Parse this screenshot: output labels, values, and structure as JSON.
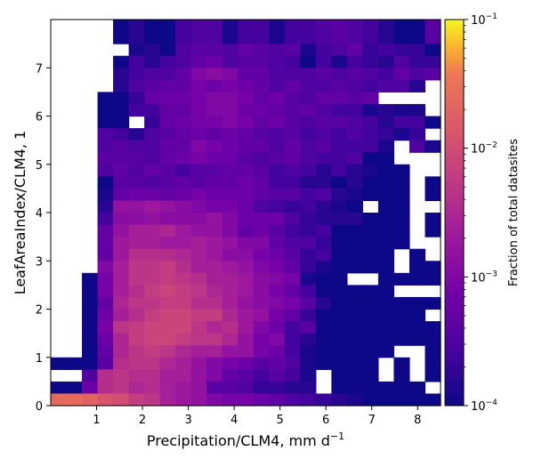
{
  "chart_data": {
    "type": "heatmap",
    "xlabel": "Precipitation/CLM4,  mm d",
    "xlabel_sup": "−1",
    "ylabel": "LeafAreaIndex/CLM4,  1",
    "xlim": [
      0,
      8.5
    ],
    "ylim": [
      0,
      8
    ],
    "xticks": [
      1,
      2,
      3,
      4,
      5,
      6,
      7,
      8
    ],
    "yticks": [
      0,
      1,
      2,
      3,
      4,
      5,
      6,
      7
    ],
    "xtick_labels": [
      "1",
      "2",
      "3",
      "4",
      "5",
      "6",
      "7",
      "8"
    ],
    "ytick_labels": [
      "0",
      "1",
      "2",
      "3",
      "4",
      "5",
      "6",
      "7"
    ],
    "x_bin_width": 0.3333,
    "y_bin_width": 0.3333,
    "colorbar": {
      "label": "Fraction of total datasites",
      "scale": "log",
      "vmin": 0.0001,
      "vmax": 0.1,
      "tick_values": [
        0.0001,
        0.001,
        0.01,
        0.1
      ],
      "tick_labels": [
        {
          "base": "10",
          "exp": "−4"
        },
        {
          "base": "10",
          "exp": "−3"
        },
        {
          "base": "10",
          "exp": "−2"
        },
        {
          "base": "10",
          "exp": "−1"
        }
      ]
    },
    "grid": false,
    "log10_fraction_rows_top_to_bottom": [
      [
        null,
        null,
        null,
        null,
        -4,
        -3.8,
        -4,
        -4,
        -3.6,
        -3.5,
        -3.5,
        -3.9,
        -3.6,
        -3.6,
        -3.9,
        -3.6,
        -3.6,
        -3.5,
        -3.4,
        -3.5,
        -3.6,
        -3.8,
        -4,
        -4,
        -3.4
      ],
      [
        null,
        null,
        null,
        null,
        -4,
        -3.8,
        -4,
        -4,
        -3.6,
        -3.5,
        -3.5,
        -3.9,
        -3.6,
        -3.6,
        -3.9,
        -3.6,
        -3.6,
        -3.5,
        -3.4,
        -3.5,
        -3.6,
        -3.8,
        -4,
        -4,
        -3.4
      ],
      [
        null,
        null,
        null,
        null,
        null,
        -3.9,
        -3.8,
        -4,
        -3.5,
        -3.4,
        -3.4,
        -3.5,
        -3.3,
        -3.4,
        -3.5,
        -3.4,
        -3.9,
        -3.6,
        -3.5,
        -3.3,
        -3.7,
        -3.6,
        -3.7,
        -3.7,
        -4
      ],
      [
        null,
        null,
        null,
        null,
        -4,
        -3.6,
        -3.8,
        -3.6,
        -3.5,
        -3.3,
        -3.2,
        -3.5,
        -3.4,
        -3.4,
        -3.5,
        -3.6,
        -4,
        -3.6,
        -3.9,
        -3.6,
        -3.7,
        -3.8,
        -3.5,
        -3.7,
        -3.7
      ],
      [
        null,
        null,
        null,
        null,
        -3.8,
        -3.6,
        -3.5,
        -3.5,
        -3.3,
        -3,
        -2.9,
        -3,
        -3.3,
        -3.3,
        -3.5,
        -3.5,
        -3.5,
        -3.4,
        -3.5,
        -3.4,
        -3.5,
        -3.6,
        -3.3,
        -3.5,
        -3.4
      ],
      [
        null,
        null,
        null,
        null,
        -3.8,
        -3.5,
        -3.4,
        -3.3,
        -3.3,
        -3.1,
        -3.2,
        -3.1,
        -3.2,
        -3.3,
        -3.5,
        -3.3,
        -3.5,
        -3.5,
        -3.4,
        -3.5,
        -3.6,
        -3.5,
        -3.5,
        -3.8,
        null
      ],
      [
        null,
        null,
        null,
        -4,
        -4,
        -3.7,
        -3.3,
        -3.2,
        -3.2,
        -3.1,
        -3,
        -3,
        -3.1,
        -3.3,
        -3.2,
        -3.4,
        -3.5,
        -3.3,
        -3.3,
        -3.4,
        -3.3,
        null,
        null,
        null,
        null
      ],
      [
        null,
        null,
        null,
        -4,
        -4,
        -3.6,
        -3.6,
        -3.3,
        -3.3,
        -3.1,
        -3,
        -3,
        -3.2,
        -3.2,
        -3.3,
        -3.4,
        -3.3,
        -3.5,
        -3.6,
        -3.6,
        -3.9,
        -3.8,
        -3.9,
        -3.9,
        null
      ],
      [
        null,
        null,
        null,
        -4,
        -4,
        null,
        -3.7,
        -3.3,
        -3.2,
        -3.1,
        -3.1,
        -3,
        -3.1,
        -3.3,
        -3.2,
        -3.4,
        -3.5,
        -3.4,
        -3.4,
        -3.5,
        -3.6,
        -3.8,
        -3.6,
        -3.6,
        -4
      ],
      [
        null,
        null,
        null,
        -3.5,
        -3.6,
        -3.8,
        -3.5,
        -3.4,
        -3.3,
        -3.2,
        -3.3,
        -3.2,
        -3.3,
        -3.4,
        -3.5,
        -3.4,
        -3.6,
        -3.5,
        -3.6,
        -3.5,
        -3.6,
        -3.7,
        -3.9,
        -3.7,
        null
      ],
      [
        null,
        null,
        null,
        -3.5,
        -3.4,
        -3.5,
        -3.5,
        -3.3,
        -3.3,
        -3,
        -3.1,
        -3.2,
        -3.3,
        -3.3,
        -3.5,
        -3.3,
        -3.5,
        -3.4,
        -3.6,
        -3.6,
        -3.6,
        -3.9,
        null,
        -3.5,
        -3.9
      ],
      [
        null,
        null,
        null,
        -3.4,
        -3.4,
        -3.4,
        -3.5,
        -3.3,
        -3.2,
        -3.1,
        -3.2,
        -3.2,
        -3.4,
        -3.5,
        -3.4,
        -3.3,
        -3.5,
        -3.6,
        -3.6,
        -3.5,
        -4,
        -4,
        null,
        null,
        null
      ],
      [
        null,
        null,
        null,
        -3.5,
        -3.3,
        -3.5,
        -3.3,
        -3.4,
        -3.6,
        -3.4,
        -3.4,
        -3.3,
        -3.3,
        -3.4,
        -3.6,
        -3.5,
        -3.6,
        -3.8,
        -3.6,
        -3.8,
        -3.9,
        -4,
        -4,
        null,
        null
      ],
      [
        null,
        null,
        null,
        -4,
        -3.4,
        -3.4,
        -3.5,
        -3.4,
        -3.3,
        -3.4,
        -3.3,
        -3.3,
        -3.2,
        -3.3,
        -3.6,
        -3.6,
        -3.8,
        -3.8,
        -4,
        -3.8,
        -4,
        -4,
        -4,
        null,
        -4
      ],
      [
        null,
        null,
        null,
        -3.9,
        -3.3,
        -3.2,
        -3.2,
        -3.3,
        -3.2,
        -3.1,
        -3.2,
        -3.2,
        -3.2,
        -3.3,
        -3.4,
        -3.4,
        -3.6,
        -3.5,
        -3.8,
        -3.9,
        -4,
        -4,
        -4,
        null,
        -4
      ],
      [
        null,
        null,
        null,
        -3.8,
        -2.8,
        -2.8,
        -2.7,
        -2.8,
        -2.9,
        -3,
        -3.1,
        -3.1,
        -3.2,
        -3.5,
        -3.6,
        -3.7,
        -3.6,
        -3.8,
        -3.9,
        -4,
        null,
        -4,
        -4,
        null,
        null
      ],
      [
        null,
        null,
        null,
        -3.6,
        -2.9,
        -2.9,
        -2.8,
        -2.9,
        -2.9,
        -2.9,
        -2.8,
        -3,
        -3.2,
        -3.2,
        -3.2,
        -3.5,
        -3.7,
        -3.8,
        -3.8,
        -3.8,
        -4,
        -4,
        -4,
        null,
        -4
      ],
      [
        null,
        null,
        null,
        -3.3,
        -2.8,
        -2.6,
        -2.6,
        -2.5,
        -2.7,
        -2.8,
        -2.8,
        -3,
        -3.3,
        -3.2,
        -3.4,
        -3.6,
        -3.7,
        -3.6,
        -4,
        -4,
        -4,
        -4,
        -4,
        null,
        -4
      ],
      [
        null,
        null,
        null,
        -3.3,
        -2.7,
        -2.6,
        -2.6,
        -2.7,
        -2.7,
        -2.6,
        -2.7,
        -2.8,
        -3,
        -3,
        -3.3,
        -3.5,
        -3.5,
        -3.7,
        -4,
        -4,
        -4,
        -4,
        -4,
        null,
        null
      ],
      [
        null,
        null,
        null,
        -3.3,
        -2.7,
        -2.4,
        -2.4,
        -2.4,
        -2.5,
        -2.6,
        -2.7,
        -2.9,
        -2.9,
        -3.1,
        -3.2,
        -3.4,
        -3.7,
        -3.6,
        -4,
        -4,
        -4,
        -4,
        null,
        -4,
        null
      ],
      [
        null,
        null,
        null,
        -3,
        -2.6,
        -2.3,
        -2.3,
        -2.2,
        -2.4,
        -2.6,
        -2.6,
        -2.7,
        -2.8,
        -3,
        -3.1,
        -3.3,
        -3.7,
        -3.9,
        -4,
        -4,
        -4,
        -4,
        null,
        -4,
        -4
      ],
      [
        null,
        null,
        -4,
        -3.1,
        -2.6,
        -2.3,
        -2.3,
        -2.2,
        -2.3,
        -2.4,
        -2.6,
        -2.6,
        -2.7,
        -2.9,
        -3,
        -3.1,
        -3.9,
        -4,
        -4,
        null,
        null,
        -4,
        -4,
        -4,
        -4
      ],
      [
        null,
        null,
        -4,
        -3.1,
        -2.6,
        -2.4,
        -2.2,
        -2.1,
        -2.2,
        -2.3,
        -2.5,
        -2.6,
        -2.7,
        -2.9,
        -3.1,
        -3.3,
        -3.6,
        -4,
        -4,
        -4,
        -4,
        -4,
        null,
        null,
        null
      ],
      [
        null,
        null,
        -4,
        -3.3,
        -2.5,
        -2.3,
        -2.3,
        -2.2,
        -2.2,
        -2.4,
        -2.4,
        -2.6,
        -2.8,
        -2.9,
        -3,
        -3.1,
        -3.4,
        -3.8,
        -4,
        -4,
        -4,
        -4,
        -4,
        -4,
        -4
      ],
      [
        null,
        null,
        -4,
        -3.2,
        -2.6,
        -2.4,
        -2.2,
        -2.1,
        -2.1,
        -2.2,
        -2.2,
        -2.5,
        -2.7,
        -2.8,
        -3.1,
        -3.3,
        -3.7,
        -4,
        -4,
        -4,
        -4,
        -4,
        -4,
        -4,
        null
      ],
      [
        null,
        null,
        -4,
        -3.1,
        -2.3,
        -2.2,
        -2.1,
        -2.1,
        -2.1,
        -2.3,
        -2.5,
        -2.4,
        -2.7,
        -3,
        -3.2,
        -3.6,
        -3.4,
        -4,
        -4,
        -4,
        -4,
        -4,
        -4,
        -4,
        -4
      ],
      [
        null,
        null,
        -4,
        -3.2,
        -2.5,
        -2.2,
        -2.1,
        -2.1,
        -2.2,
        -2.3,
        -2.3,
        -2.5,
        -2.8,
        -3.1,
        -3,
        -3.6,
        -3.8,
        -4,
        -4,
        -4,
        -4,
        -4,
        -4,
        -4,
        -4
      ],
      [
        null,
        null,
        -4,
        -3.3,
        -2.5,
        -2.3,
        -2.2,
        -2.3,
        -2.5,
        -2.6,
        -2.6,
        -2.8,
        -2.8,
        -3.1,
        -3.2,
        -3.6,
        -3.9,
        -4,
        -4,
        -4,
        -4,
        -4,
        null,
        null,
        -4
      ],
      [
        -4,
        -4,
        -4,
        -3.4,
        -2.4,
        -2.3,
        -2.3,
        -2.5,
        -2.6,
        -2.8,
        -3,
        -3.1,
        -3.2,
        -3.4,
        -3.3,
        -3.5,
        -3.9,
        -4,
        -4,
        -4,
        -4,
        null,
        -4,
        null,
        -4
      ],
      [
        null,
        null,
        -3.5,
        -2.4,
        -2.3,
        -2.4,
        -2.4,
        -2.6,
        -2.6,
        -2.8,
        -3,
        -3.3,
        -3.4,
        -3.6,
        -3.4,
        -3.6,
        -3.9,
        null,
        -4,
        -4,
        -4,
        null,
        -4,
        null,
        -4
      ],
      [
        -4,
        -4,
        -3.2,
        -2.4,
        -2.3,
        -2.5,
        -2.4,
        -2.6,
        -2.7,
        -2.8,
        -3.4,
        -3.4,
        -3.5,
        -3.7,
        -3.7,
        -3.8,
        -3.8,
        null,
        -4,
        -4,
        -4,
        -4,
        -4,
        -4,
        null
      ],
      [
        -1.6,
        -1.6,
        -1.7,
        -1.9,
        -2,
        -2.2,
        -2.3,
        -2.6,
        -2.7,
        -2.8,
        -3,
        -3.1,
        -3.1,
        -3.2,
        -3.3,
        -3.5,
        -3.6,
        -3.7,
        -3.8,
        -3.9,
        -4,
        -4,
        -4,
        -4,
        -4
      ]
    ]
  }
}
